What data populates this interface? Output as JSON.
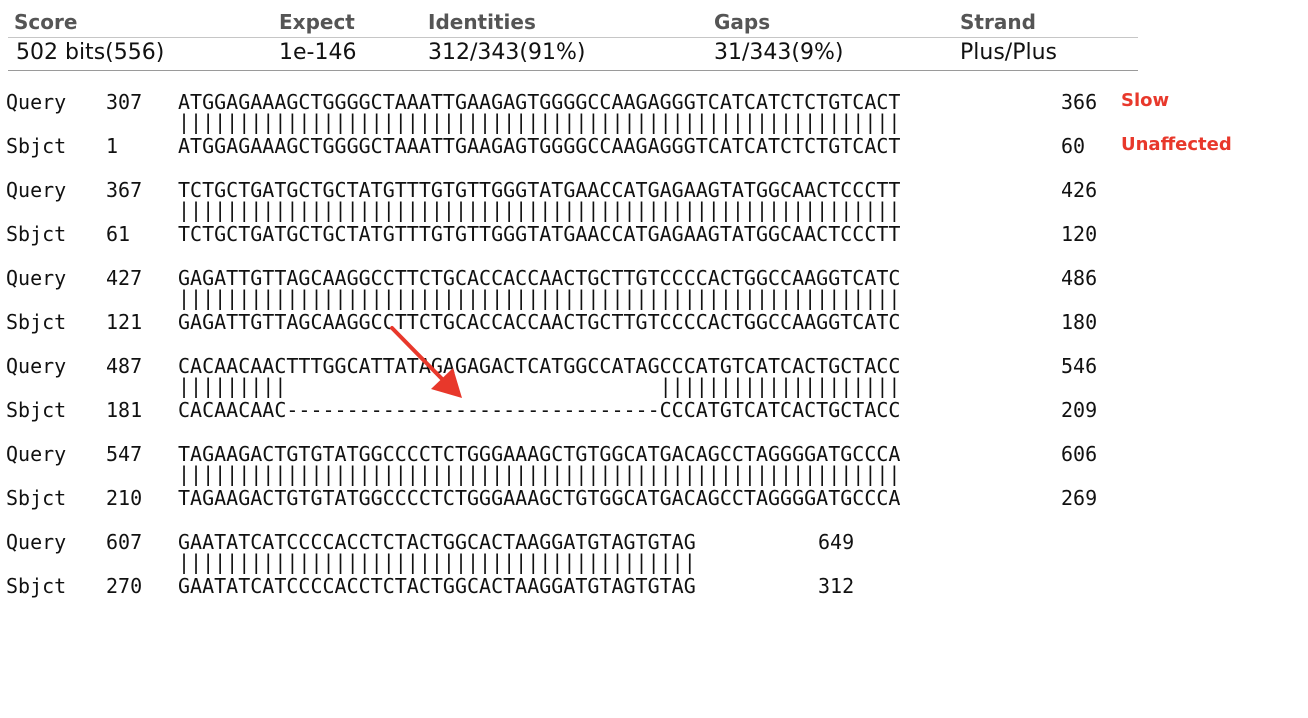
{
  "summary": {
    "headers": [
      "Score",
      "Expect",
      "Identities",
      "Gaps",
      "Strand"
    ],
    "values": [
      "502 bits(556)",
      "1e-146",
      "312/343(91%)",
      "31/343(9%)",
      "Plus/Plus"
    ]
  },
  "alignment": [
    {
      "query": {
        "label": "Query",
        "start": "307",
        "seq": "ATGGAGAAAGCTGGGGCTAAATTGAAGAGTGGGGCCAAGAGGGTCATCATCTCTGTCACT",
        "end": "366"
      },
      "match": "||||||||||||||||||||||||||||||||||||||||||||||||||||||||||||",
      "sbjct": {
        "label": "Sbjct",
        "start": "1",
        "seq": "ATGGAGAAAGCTGGGGCTAAATTGAAGAGTGGGGCCAAGAGGGTCATCATCTCTGTCACT",
        "end": "60"
      }
    },
    {
      "query": {
        "label": "Query",
        "start": "367",
        "seq": "TCTGCTGATGCTGCTATGTTTGTGTTGGGTATGAACCATGAGAAGTATGGCAACTCCCTT",
        "end": "426"
      },
      "match": "||||||||||||||||||||||||||||||||||||||||||||||||||||||||||||",
      "sbjct": {
        "label": "Sbjct",
        "start": "61",
        "seq": "TCTGCTGATGCTGCTATGTTTGTGTTGGGTATGAACCATGAGAAGTATGGCAACTCCCTT",
        "end": "120"
      }
    },
    {
      "query": {
        "label": "Query",
        "start": "427",
        "seq": "GAGATTGTTAGCAAGGCCTTCTGCACCACCAACTGCTTGTCCCCACTGGCCAAGGTCATC",
        "end": "486"
      },
      "match": "||||||||||||||||||||||||||||||||||||||||||||||||||||||||||||",
      "sbjct": {
        "label": "Sbjct",
        "start": "121",
        "seq": "GAGATTGTTAGCAAGGCCTTCTGCACCACCAACTGCTTGTCCCCACTGGCCAAGGTCATC",
        "end": "180"
      }
    },
    {
      "query": {
        "label": "Query",
        "start": "487",
        "seq": "CACAACAACTTTGGCATTATAGAGAGACTCATGGCCATAGCCCATGTCATCACTGCTACC",
        "end": "546"
      },
      "match": "|||||||||                               ||||||||||||||||||||",
      "sbjct": {
        "label": "Sbjct",
        "start": "181",
        "seq": "CACAACAAC-------------------------------CCCATGTCATCACTGCTACC",
        "end": "209"
      }
    },
    {
      "query": {
        "label": "Query",
        "start": "547",
        "seq": "TAGAAGACTGTGTATGGCCCCTCTGGGAAAGCTGTGGCATGACAGCCTAGGGGATGCCCA",
        "end": "606"
      },
      "match": "||||||||||||||||||||||||||||||||||||||||||||||||||||||||||||",
      "sbjct": {
        "label": "Sbjct",
        "start": "210",
        "seq": "TAGAAGACTGTGTATGGCCCCTCTGGGAAAGCTGTGGCATGACAGCCTAGGGGATGCCCA",
        "end": "269"
      }
    },
    {
      "query": {
        "label": "Query",
        "start": "607",
        "seq": "GAATATCATCCCCACCTCTACTGGCACTAAGGATGTAGTGTAG",
        "end": "649"
      },
      "match": "|||||||||||||||||||||||||||||||||||||||||||",
      "sbjct": {
        "label": "Sbjct",
        "start": "270",
        "seq": "GAATATCATCCCCACCTCTACTGGCACTAAGGATGTAGTGTAG",
        "end": "312"
      }
    }
  ],
  "annotations": {
    "query_label": "Slow",
    "sbjct_label": "Unaffected",
    "color": "#e8382b"
  }
}
